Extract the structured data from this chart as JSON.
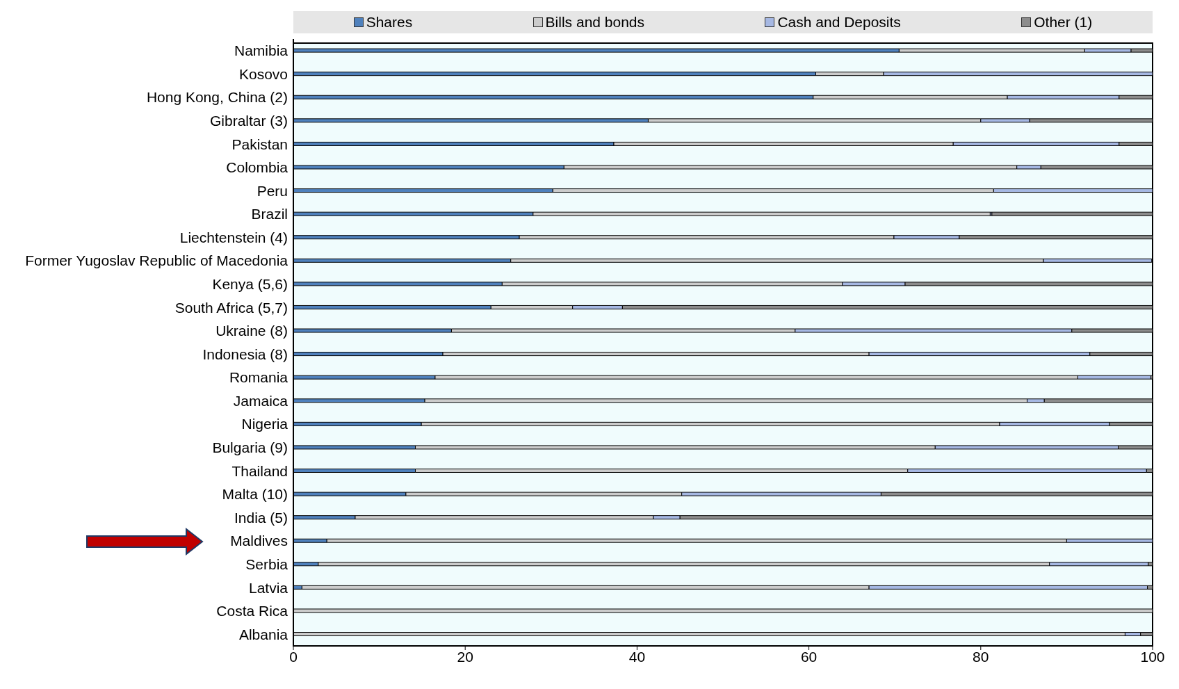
{
  "chart_data": {
    "type": "bar",
    "orientation": "horizontal",
    "stacked": true,
    "legend": "top",
    "grid": false,
    "categories": [
      "Namibia",
      "Kosovo",
      "Hong Kong, China (2)",
      "Gibraltar (3)",
      "Pakistan",
      "Colombia",
      "Peru",
      "Brazil",
      "Liechtenstein (4)",
      "Former Yugoslav Republic of Macedonia",
      "Kenya (5,6)",
      "South Africa (5,7)",
      "Ukraine (8)",
      "Indonesia (8)",
      "Romania",
      "Jamaica",
      "Nigeria",
      "Bulgaria (9)",
      "Thailand",
      "Malta (10)",
      "India (5)",
      "Maldives",
      "Serbia",
      "Latvia",
      "Costa Rica",
      "Albania"
    ],
    "series": [
      {
        "name": "Shares",
        "color": "#4f81bd",
        "values": [
          70.5,
          60.8,
          60.5,
          41.3,
          37.3,
          31.5,
          30.2,
          27.9,
          26.3,
          25.3,
          24.3,
          23.0,
          18.4,
          17.4,
          16.5,
          15.3,
          14.9,
          14.2,
          14.2,
          13.1,
          7.2,
          3.9,
          2.9,
          1.0,
          0,
          0
        ]
      },
      {
        "name": "Bills and bonds",
        "color": "#cccccc",
        "values": [
          21.6,
          7.9,
          22.6,
          38.7,
          39.5,
          52.7,
          51.3,
          53.2,
          43.6,
          62.0,
          39.6,
          9.5,
          40.0,
          49.6,
          74.8,
          70.1,
          67.3,
          60.5,
          57.3,
          32.1,
          34.7,
          86.1,
          85.1,
          66.0,
          100,
          96.8
        ]
      },
      {
        "name": "Cash and Deposits",
        "color": "#a6b8e3",
        "values": [
          5.4,
          31.3,
          13.0,
          5.7,
          19.3,
          2.8,
          18.5,
          0.2,
          7.6,
          12.6,
          7.3,
          5.8,
          32.2,
          25.7,
          8.5,
          2.0,
          12.8,
          21.3,
          27.8,
          23.2,
          3.1,
          10.0,
          11.5,
          32.4,
          0,
          1.8
        ]
      },
      {
        "name": "Other (1)",
        "color": "#8c8c8c",
        "values": [
          2.5,
          0,
          3.9,
          14.3,
          3.9,
          13.0,
          0,
          18.7,
          22.5,
          0,
          28.8,
          61.7,
          9.4,
          7.3,
          0.2,
          12.6,
          5.0,
          4.0,
          0.7,
          31.6,
          55.0,
          0,
          0.5,
          0.6,
          0,
          1.4
        ]
      }
    ],
    "xlim": [
      0,
      100
    ],
    "xticks": [
      0,
      20,
      40,
      60,
      80,
      100
    ]
  }
}
